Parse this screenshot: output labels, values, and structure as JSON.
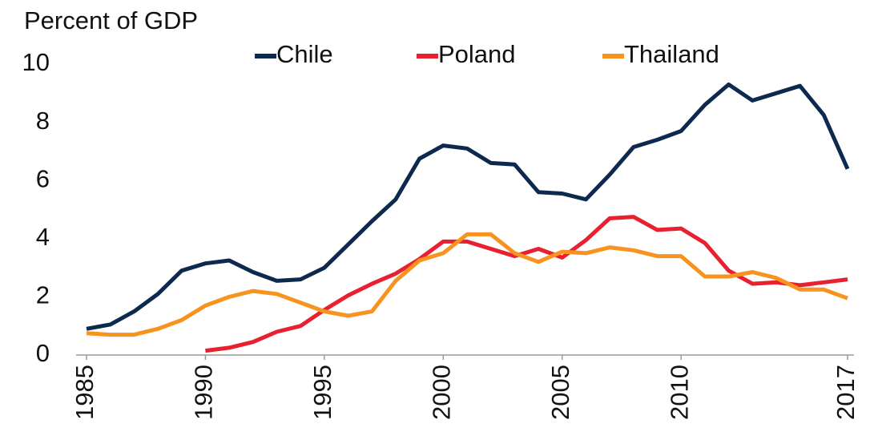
{
  "chart_data": {
    "type": "line",
    "ylabel": "Percent of GDP",
    "x": [
      1985,
      1986,
      1987,
      1988,
      1989,
      1990,
      1991,
      1992,
      1993,
      1994,
      1995,
      1996,
      1997,
      1998,
      1999,
      2000,
      2001,
      2002,
      2003,
      2004,
      2005,
      2006,
      2007,
      2008,
      2009,
      2010,
      2011,
      2012,
      2013,
      2014,
      2015,
      2016,
      2017
    ],
    "xlim": [
      1985,
      2017
    ],
    "xticks": [
      1985,
      1990,
      1995,
      2000,
      2005,
      2010,
      2017
    ],
    "ylim": [
      0,
      10
    ],
    "yticks": [
      0,
      2,
      4,
      6,
      8,
      10
    ],
    "grid": false,
    "series": [
      {
        "name": "Chile",
        "color": "#0d2a4e",
        "values": [
          0.9,
          1.05,
          1.5,
          2.1,
          2.9,
          3.15,
          3.25,
          2.85,
          2.55,
          2.6,
          3.0,
          3.8,
          4.6,
          5.35,
          6.75,
          7.2,
          7.1,
          6.6,
          6.55,
          5.6,
          5.55,
          5.35,
          6.2,
          7.15,
          7.4,
          7.7,
          8.6,
          9.3,
          8.75,
          9.0,
          9.25,
          8.25,
          6.4
        ]
      },
      {
        "name": "Poland",
        "color": "#e8202f",
        "values": [
          null,
          null,
          null,
          null,
          null,
          0.15,
          0.25,
          0.45,
          0.8,
          1.0,
          1.55,
          2.05,
          2.45,
          2.8,
          3.3,
          3.9,
          3.9,
          3.65,
          3.4,
          3.65,
          3.35,
          3.95,
          4.7,
          4.75,
          4.3,
          4.35,
          3.85,
          2.9,
          2.45,
          2.5,
          2.4,
          2.5,
          2.6
        ]
      },
      {
        "name": "Thailand",
        "color": "#f7931e",
        "values": [
          0.75,
          0.7,
          0.7,
          0.9,
          1.2,
          1.7,
          2.0,
          2.2,
          2.1,
          1.8,
          1.5,
          1.35,
          1.5,
          2.55,
          3.25,
          3.5,
          4.15,
          4.15,
          3.5,
          3.2,
          3.55,
          3.5,
          3.7,
          3.6,
          3.4,
          3.4,
          2.7,
          2.7,
          2.85,
          2.65,
          2.25,
          2.25,
          1.95
        ]
      }
    ]
  }
}
